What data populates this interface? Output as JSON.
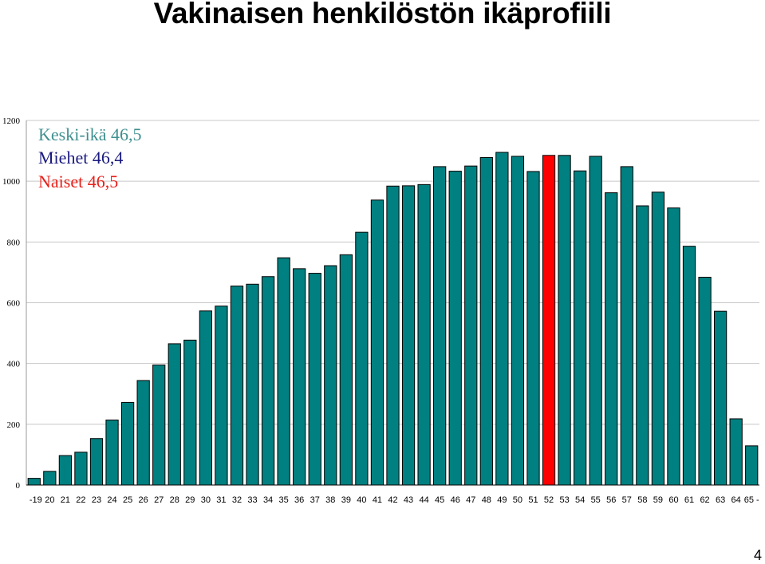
{
  "page_title": "Vakinaisen henkilöstön ikäprofiili",
  "page_number": "4",
  "annotations": [
    {
      "label": "Keski-ikä",
      "value": "46,5",
      "color": "#3f8f8f"
    },
    {
      "label": "Miehet",
      "value": "46,4",
      "color": "#1a1a80"
    },
    {
      "label": "Naiset",
      "value": "46,5",
      "color": "#e8201a"
    }
  ],
  "colors": {
    "bar": "#008080",
    "highlight": "#ff0000",
    "grid": "#c8c8c8"
  },
  "chart_data": {
    "type": "bar",
    "title": "",
    "xlabel": "",
    "ylabel": "",
    "ylim": [
      0,
      1200
    ],
    "yticks": [
      0,
      200,
      400,
      600,
      800,
      1000,
      1200
    ],
    "grid": true,
    "highlight_category": "52",
    "categories": [
      "-19",
      "20",
      "21",
      "22",
      "23",
      "24",
      "25",
      "26",
      "27",
      "28",
      "29",
      "30",
      "31",
      "32",
      "33",
      "34",
      "35",
      "36",
      "37",
      "38",
      "39",
      "40",
      "41",
      "42",
      "43",
      "44",
      "45",
      "46",
      "47",
      "48",
      "49",
      "50",
      "51",
      "52",
      "53",
      "54",
      "55",
      "56",
      "57",
      "58",
      "59",
      "60",
      "61",
      "62",
      "63",
      "64",
      "65 -"
    ],
    "values": [
      22,
      45,
      97,
      108,
      153,
      214,
      272,
      344,
      395,
      465,
      477,
      573,
      589,
      655,
      661,
      686,
      748,
      712,
      697,
      722,
      758,
      832,
      938,
      984,
      985,
      989,
      1048,
      1033,
      1050,
      1078,
      1095,
      1082,
      1032,
      1085,
      1085,
      1034,
      1082,
      962,
      1048,
      919,
      964,
      912,
      786,
      684,
      572,
      218,
      129
    ]
  }
}
